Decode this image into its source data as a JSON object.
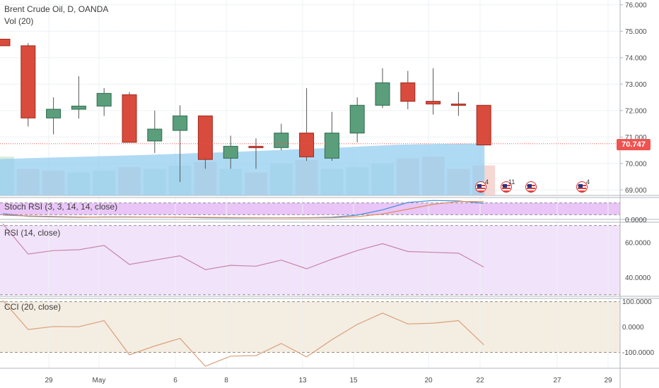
{
  "main_legend": {
    "title": "Brent Crude Oil, D, OANDA",
    "volume": "Vol (20)"
  },
  "last_price": "70.747",
  "colors": {
    "up_fill": "#5b9e7c",
    "up_edge": "#2f6b4d",
    "down_fill": "#d94b3c",
    "down_edge": "#9e2a1e",
    "volume_ma": "#94cdf0",
    "last_price": "#ef5350",
    "indicator_bg": "#f1e3fa",
    "cci_bg": "#f4ede2",
    "stoch_band": "#e4b8f5"
  },
  "events": [
    {
      "label": "4"
    },
    {
      "label": "11"
    },
    {
      "label": ""
    },
    {
      "label": "4"
    }
  ],
  "chart_data": {
    "type": "candlestick",
    "price_axis": {
      "ylim": [
        68.9,
        76.1
      ],
      "ticks": [
        "76.000",
        "75.000",
        "74.000",
        "73.000",
        "72.000",
        "71.000",
        "70.000",
        "69.000"
      ]
    },
    "x_axis": {
      "ticks": [
        "29",
        "May",
        "6",
        "8",
        "13",
        "15",
        "20",
        "22",
        "27",
        "29"
      ]
    },
    "candles": [
      {
        "o": 74.7,
        "h": 74.7,
        "l": 74.45,
        "c": 74.45
      },
      {
        "o": 74.45,
        "h": 74.55,
        "l": 71.4,
        "c": 71.72
      },
      {
        "o": 71.72,
        "h": 72.5,
        "l": 71.1,
        "c": 72.05
      },
      {
        "o": 72.05,
        "h": 73.3,
        "l": 71.7,
        "c": 72.17
      },
      {
        "o": 72.17,
        "h": 72.85,
        "l": 71.8,
        "c": 72.65
      },
      {
        "o": 72.6,
        "h": 72.7,
        "l": 70.8,
        "c": 70.8
      },
      {
        "o": 70.85,
        "h": 72.0,
        "l": 70.4,
        "c": 71.3
      },
      {
        "o": 71.25,
        "h": 72.2,
        "l": 69.3,
        "c": 71.8
      },
      {
        "o": 71.8,
        "h": 71.8,
        "l": 69.8,
        "c": 70.15
      },
      {
        "o": 70.2,
        "h": 71.05,
        "l": 69.8,
        "c": 70.65
      },
      {
        "o": 70.65,
        "h": 70.95,
        "l": 69.8,
        "c": 70.6
      },
      {
        "o": 70.6,
        "h": 71.5,
        "l": 70.5,
        "c": 71.15
      },
      {
        "o": 71.15,
        "h": 72.85,
        "l": 70.1,
        "c": 70.25
      },
      {
        "o": 70.2,
        "h": 71.95,
        "l": 70.1,
        "c": 71.15
      },
      {
        "o": 71.15,
        "h": 72.5,
        "l": 70.8,
        "c": 72.2
      },
      {
        "o": 72.2,
        "h": 73.6,
        "l": 72.1,
        "c": 73.05
      },
      {
        "o": 73.05,
        "h": 73.5,
        "l": 72.05,
        "c": 72.35
      },
      {
        "o": 72.35,
        "h": 73.6,
        "l": 71.85,
        "c": 72.25
      },
      {
        "o": 72.25,
        "h": 72.7,
        "l": 71.8,
        "c": 72.2
      },
      {
        "o": 72.2,
        "h": 72.2,
        "l": 70.7,
        "c": 70.7
      }
    ],
    "volume": [
      {
        "v": 22,
        "up": true
      },
      {
        "v": 15,
        "up": false
      },
      {
        "v": 14,
        "up": false
      },
      {
        "v": 13,
        "up": true
      },
      {
        "v": 14,
        "up": true
      },
      {
        "v": 16,
        "up": false
      },
      {
        "v": 15,
        "up": true
      },
      {
        "v": 17,
        "up": true
      },
      {
        "v": 19,
        "up": false
      },
      {
        "v": 15,
        "up": true
      },
      {
        "v": 13,
        "up": false
      },
      {
        "v": 18,
        "up": true
      },
      {
        "v": 20,
        "up": false
      },
      {
        "v": 15,
        "up": true
      },
      {
        "v": 16,
        "up": true
      },
      {
        "v": 18,
        "up": true
      },
      {
        "v": 21,
        "up": false
      },
      {
        "v": 22,
        "up": false
      },
      {
        "v": 15,
        "up": false
      },
      {
        "v": 17,
        "up": false
      }
    ],
    "volume_ma": [
      20.5,
      20.9,
      21.3,
      21.7,
      22.1,
      22.5,
      22.9,
      23.4,
      23.9,
      24.4,
      24.9,
      25.5,
      26.1,
      26.7,
      27.3,
      28.0,
      28.7,
      29.0,
      29.2,
      29.3
    ],
    "stoch_rsi": {
      "label": "Stoch RSI (3, 3, 14, 14, close)",
      "ylim": [
        0,
        100
      ],
      "ticks": [
        "0.0000"
      ],
      "k": [
        25,
        12,
        9,
        7,
        9,
        9,
        8,
        7,
        5,
        4,
        4,
        4,
        5,
        8,
        18,
        45,
        82,
        92,
        90,
        78
      ],
      "d": [
        18,
        14,
        11,
        9,
        8,
        8,
        8,
        8,
        7,
        6,
        5,
        4,
        4,
        5,
        10,
        24,
        48,
        73,
        87,
        86
      ]
    },
    "rsi": {
      "label": "RSI (14, close)",
      "ylim": [
        29.5,
        71.5
      ],
      "ticks": [
        "60.0000",
        "40.0000"
      ],
      "values": [
        71,
        53.5,
        55.5,
        56,
        58.5,
        47.5,
        50,
        52.5,
        44.5,
        47,
        46.5,
        50,
        45,
        50.5,
        55.5,
        59.5,
        55,
        54.5,
        54,
        46
      ]
    },
    "cci": {
      "label": "CCI (20, close)",
      "ylim": [
        -160,
        110
      ],
      "ticks": [
        "100.0000",
        "0.0000",
        "-100.0000"
      ],
      "values": [
        105,
        -10,
        2,
        1,
        25,
        -110,
        -75,
        -45,
        -155,
        -115,
        -113,
        -65,
        -118,
        -50,
        10,
        55,
        12,
        15,
        25,
        -70
      ]
    }
  }
}
